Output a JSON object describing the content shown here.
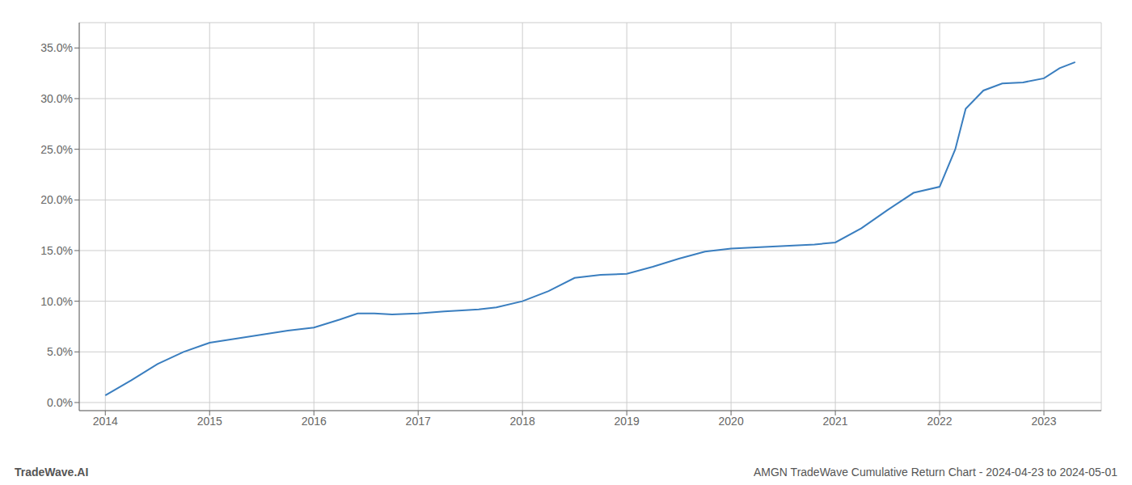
{
  "chart_data": {
    "type": "line",
    "x": [
      2014.0,
      2014.25,
      2014.5,
      2014.75,
      2015.0,
      2015.25,
      2015.5,
      2015.75,
      2016.0,
      2016.25,
      2016.42,
      2016.58,
      2016.75,
      2017.0,
      2017.25,
      2017.42,
      2017.58,
      2017.75,
      2018.0,
      2018.25,
      2018.5,
      2018.75,
      2019.0,
      2019.25,
      2019.5,
      2019.75,
      2020.0,
      2020.2,
      2020.4,
      2020.6,
      2020.8,
      2021.0,
      2021.25,
      2021.5,
      2021.75,
      2022.0,
      2022.15,
      2022.25,
      2022.42,
      2022.6,
      2022.8,
      2023.0,
      2023.15,
      2023.3
    ],
    "values": [
      0.007,
      0.022,
      0.038,
      0.05,
      0.059,
      0.063,
      0.067,
      0.071,
      0.074,
      0.082,
      0.088,
      0.088,
      0.087,
      0.088,
      0.09,
      0.091,
      0.092,
      0.094,
      0.1,
      0.11,
      0.123,
      0.126,
      0.127,
      0.134,
      0.142,
      0.149,
      0.152,
      0.153,
      0.154,
      0.155,
      0.156,
      0.158,
      0.172,
      0.19,
      0.207,
      0.213,
      0.25,
      0.29,
      0.308,
      0.315,
      0.316,
      0.32,
      0.33,
      0.336
    ],
    "color": "#3a7ebf",
    "xlim": [
      2013.75,
      2023.55
    ],
    "ylim": [
      -0.008,
      0.375
    ],
    "xticks": [
      2014,
      2015,
      2016,
      2017,
      2018,
      2019,
      2020,
      2021,
      2022,
      2023
    ],
    "yticks": [
      {
        "value": 0.0,
        "label": "0.0%"
      },
      {
        "value": 0.05,
        "label": "5.0%"
      },
      {
        "value": 0.1,
        "label": "10.0%"
      },
      {
        "value": 0.15,
        "label": "15.0%"
      },
      {
        "value": 0.2,
        "label": "20.0%"
      },
      {
        "value": 0.25,
        "label": "25.0%"
      },
      {
        "value": 0.3,
        "label": "30.0%"
      },
      {
        "value": 0.35,
        "label": "35.0%"
      }
    ],
    "grid": true,
    "annotations": [
      "TradeWave.AI",
      "AMGN TradeWave Cumulative Return Chart - 2024-04-23 to 2024-05-01"
    ]
  }
}
